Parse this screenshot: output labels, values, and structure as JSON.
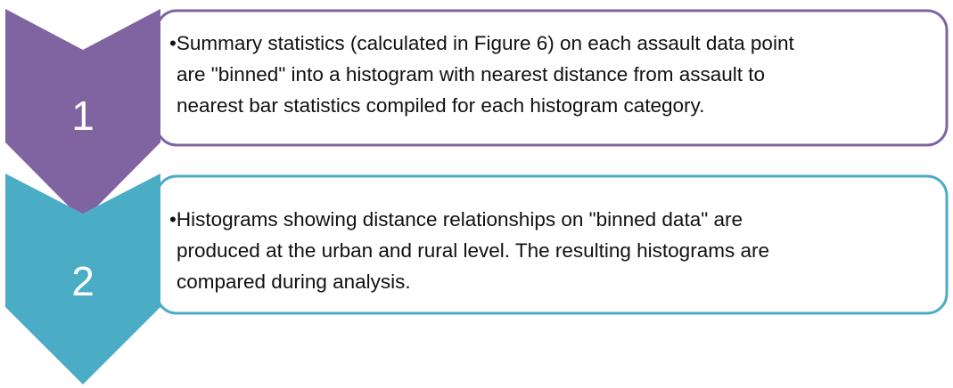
{
  "steps": [
    {
      "number": "1",
      "lines": [
        "•Summary statistics (calculated in Figure 6) on each assault data point",
        "are \"binned\" into a histogram with nearest distance from assault to",
        "nearest bar statistics compiled for each histogram category."
      ]
    },
    {
      "number": "2",
      "lines": [
        "•Histograms showing distance relationships on \"binned data\" are",
        "produced at the urban and rural level. The resulting histograms are",
        "compared during analysis."
      ]
    }
  ]
}
